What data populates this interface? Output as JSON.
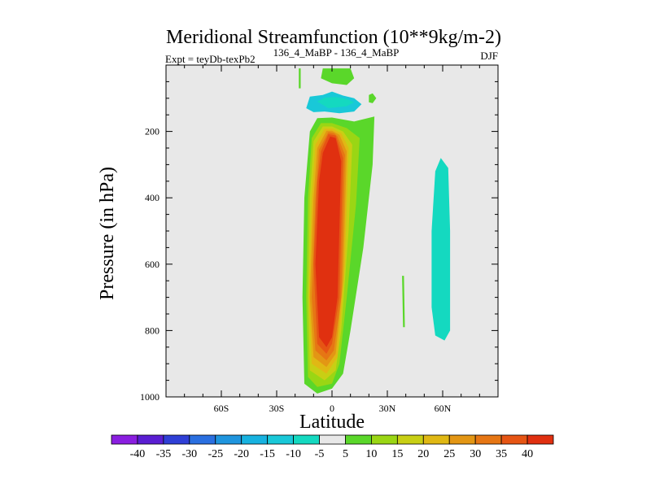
{
  "chart_data": {
    "type": "heatmap",
    "title": "Meridional Streamfunction (10**9kg/m-2)",
    "subtitle_left": "Expt = teyDb-texPb2",
    "subtitle_center": "136_4_MaBP - 136_4_MaBP",
    "subtitle_right": "DJF",
    "xlabel": "Latitude",
    "ylabel": "Pressure (in hPa)",
    "x_range": [
      -90,
      90
    ],
    "y_range": [
      1000,
      0
    ],
    "x_ticks": [
      {
        "value": -60,
        "label": "60S"
      },
      {
        "value": -30,
        "label": "30S"
      },
      {
        "value": 0,
        "label": "0"
      },
      {
        "value": 30,
        "label": "30N"
      },
      {
        "value": 60,
        "label": "60N"
      }
    ],
    "y_ticks": [
      {
        "value": 200,
        "label": "200"
      },
      {
        "value": 400,
        "label": "400"
      },
      {
        "value": 600,
        "label": "600"
      },
      {
        "value": 800,
        "label": "800"
      },
      {
        "value": 1000,
        "label": "1000"
      }
    ],
    "colorbar": {
      "labels": [
        "-40",
        "-35",
        "-30",
        "-25",
        "-20",
        "-15",
        "-10",
        "-5",
        "5",
        "10",
        "15",
        "20",
        "25",
        "30",
        "35",
        "40"
      ],
      "colors": [
        "#8a1ee0",
        "#5a1ed2",
        "#2f3fd6",
        "#2a6fe0",
        "#1f95de",
        "#17b2e0",
        "#19c8d8",
        "#14d9c0",
        "#e8e8e8",
        "#5ad72a",
        "#9ad614",
        "#c8cf14",
        "#e0b814",
        "#e39614",
        "#e67614",
        "#e65514",
        "#e03010"
      ]
    },
    "regions": [
      {
        "name": "positive-cell-green-outer",
        "color": "#5ad72a",
        "points": [
          [
            -15,
            960
          ],
          [
            -16,
            700
          ],
          [
            -15,
            400
          ],
          [
            -12,
            200
          ],
          [
            -8,
            160
          ],
          [
            0,
            158
          ],
          [
            12,
            170
          ],
          [
            23,
            155
          ],
          [
            22,
            300
          ],
          [
            17,
            550
          ],
          [
            10,
            800
          ],
          [
            6,
            930
          ],
          [
            0,
            975
          ],
          [
            -8,
            990
          ]
        ]
      },
      {
        "name": "positive-cell-yellowgreen",
        "color": "#9ad614",
        "points": [
          [
            -13,
            940
          ],
          [
            -14,
            700
          ],
          [
            -13,
            400
          ],
          [
            -11,
            220
          ],
          [
            -6,
            175
          ],
          [
            0,
            175
          ],
          [
            8,
            190
          ],
          [
            15,
            220
          ],
          [
            13,
            420
          ],
          [
            8,
            700
          ],
          [
            4,
            900
          ],
          [
            0,
            960
          ],
          [
            -8,
            970
          ]
        ]
      },
      {
        "name": "positive-cell-yellow",
        "color": "#c8cf14",
        "points": [
          [
            -12,
            920
          ],
          [
            -13,
            700
          ],
          [
            -12,
            400
          ],
          [
            -10,
            230
          ],
          [
            -5,
            185
          ],
          [
            0,
            185
          ],
          [
            6,
            200
          ],
          [
            11,
            240
          ],
          [
            9,
            500
          ],
          [
            5,
            800
          ],
          [
            2,
            920
          ],
          [
            -4,
            950
          ]
        ]
      },
      {
        "name": "positive-cell-gold",
        "color": "#e0b814",
        "points": [
          [
            -11,
            900
          ],
          [
            -12.5,
            700
          ],
          [
            -11,
            400
          ],
          [
            -9,
            240
          ],
          [
            -4,
            192
          ],
          [
            0,
            192
          ],
          [
            5,
            205
          ],
          [
            9,
            250
          ],
          [
            7,
            600
          ],
          [
            3,
            880
          ],
          [
            -3,
            930
          ]
        ]
      },
      {
        "name": "positive-cell-orange",
        "color": "#e39614",
        "points": [
          [
            -10,
            880
          ],
          [
            -12,
            700
          ],
          [
            -10,
            400
          ],
          [
            -8,
            250
          ],
          [
            -3,
            198
          ],
          [
            0,
            198
          ],
          [
            4,
            210
          ],
          [
            8,
            260
          ],
          [
            6,
            650
          ],
          [
            2,
            870
          ],
          [
            -3,
            910
          ]
        ]
      },
      {
        "name": "positive-cell-darkorange",
        "color": "#e67614",
        "points": [
          [
            -9,
            860
          ],
          [
            -11,
            700
          ],
          [
            -9,
            400
          ],
          [
            -7,
            255
          ],
          [
            -2,
            202
          ],
          [
            1,
            205
          ],
          [
            3,
            215
          ],
          [
            7,
            270
          ],
          [
            5,
            700
          ],
          [
            1,
            860
          ],
          [
            -3,
            890
          ]
        ]
      },
      {
        "name": "positive-cell-redorange",
        "color": "#e65514",
        "points": [
          [
            -8,
            840
          ],
          [
            -10,
            600
          ],
          [
            -8,
            350
          ],
          [
            -6,
            260
          ],
          [
            -2,
            208
          ],
          [
            2,
            212
          ],
          [
            6,
            280
          ],
          [
            4,
            700
          ],
          [
            0,
            840
          ],
          [
            -3,
            870
          ]
        ]
      },
      {
        "name": "positive-cell-core",
        "color": "#e03010",
        "points": [
          [
            -7,
            820
          ],
          [
            -9,
            600
          ],
          [
            -7,
            350
          ],
          [
            -5,
            265
          ],
          [
            -1,
            215
          ],
          [
            2,
            220
          ],
          [
            5,
            290
          ],
          [
            3,
            700
          ],
          [
            0,
            820
          ],
          [
            -3,
            850
          ]
        ]
      },
      {
        "name": "upper-negative-cyan",
        "color": "#19c8d8",
        "points": [
          [
            -14,
            130
          ],
          [
            -12,
            95
          ],
          [
            -5,
            90
          ],
          [
            0,
            80
          ],
          [
            6,
            92
          ],
          [
            12,
            100
          ],
          [
            16,
            118
          ],
          [
            12,
            140
          ],
          [
            4,
            145
          ],
          [
            -4,
            140
          ],
          [
            -10,
            142
          ]
        ]
      },
      {
        "name": "upper-negative-blue",
        "color": "#17b2e0",
        "points": [
          [
            -3,
            120
          ],
          [
            0,
            112
          ],
          [
            4,
            118
          ],
          [
            0,
            128
          ]
        ]
      },
      {
        "name": "upper-negative-teal",
        "color": "#14d9c0",
        "points": [
          [
            -8,
            110
          ],
          [
            -4,
            98
          ],
          [
            2,
            96
          ],
          [
            8,
            102
          ],
          [
            12,
            112
          ],
          [
            8,
            124
          ],
          [
            -2,
            130
          ]
        ]
      },
      {
        "name": "upper-green-left",
        "color": "#5ad72a",
        "points": [
          [
            -18,
            70
          ],
          [
            -18,
            10
          ],
          [
            -17,
            10
          ],
          [
            -17,
            70
          ]
        ]
      },
      {
        "name": "upper-green-top",
        "color": "#5ad72a",
        "points": [
          [
            -6,
            40
          ],
          [
            -5,
            10
          ],
          [
            10,
            10
          ],
          [
            12,
            40
          ],
          [
            8,
            60
          ],
          [
            0,
            55
          ]
        ]
      },
      {
        "name": "upper-green-right",
        "color": "#5ad72a",
        "points": [
          [
            20,
            90
          ],
          [
            22,
            85
          ],
          [
            24,
            100
          ],
          [
            22,
            115
          ],
          [
            20,
            112
          ]
        ]
      },
      {
        "name": "lower-green-spike",
        "color": "#5ad72a",
        "points": [
          [
            38,
            635
          ],
          [
            39,
            635
          ],
          [
            39.5,
            790
          ],
          [
            38.5,
            790
          ]
        ]
      },
      {
        "name": "nh-negative-cell",
        "color": "#14d9c0",
        "points": [
          [
            54,
            730
          ],
          [
            54,
            500
          ],
          [
            56,
            320
          ],
          [
            59,
            280
          ],
          [
            63,
            310
          ],
          [
            64,
            500
          ],
          [
            64,
            800
          ],
          [
            61,
            830
          ],
          [
            56,
            815
          ]
        ]
      }
    ]
  }
}
